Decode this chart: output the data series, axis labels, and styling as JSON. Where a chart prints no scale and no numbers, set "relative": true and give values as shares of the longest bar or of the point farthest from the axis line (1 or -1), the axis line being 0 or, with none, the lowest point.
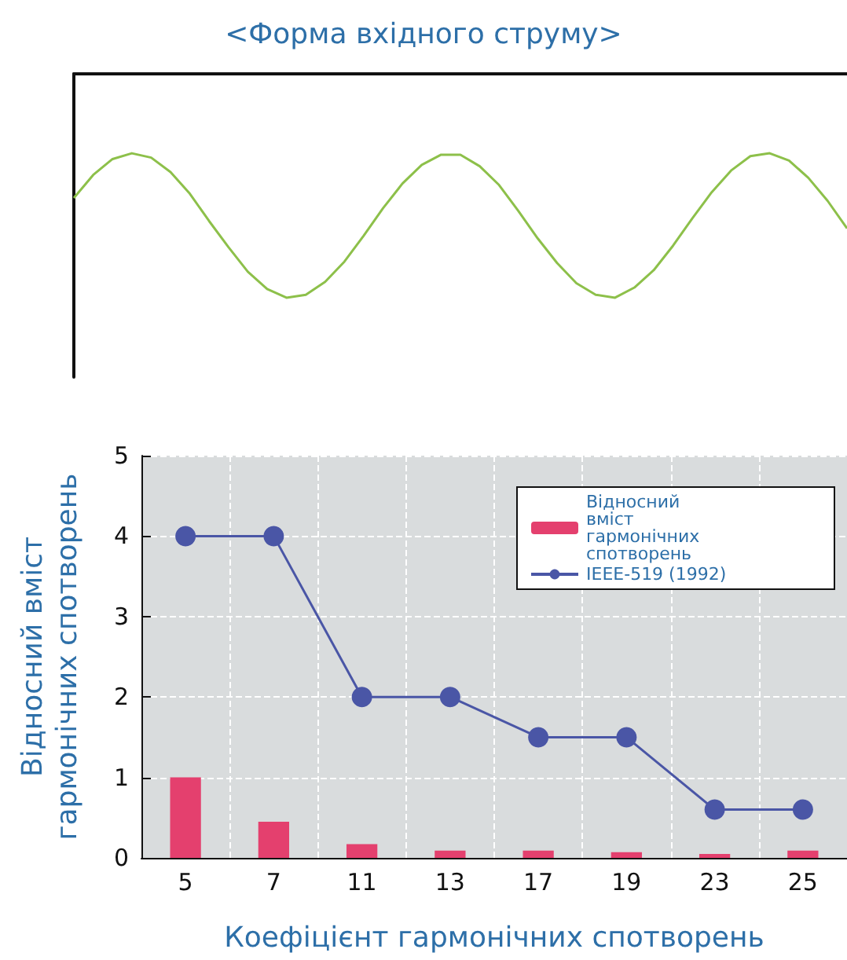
{
  "chart_data": [
    {
      "type": "line",
      "title": "<Форма вхідного струму>",
      "relative": true,
      "tick_labels": false,
      "grid": false,
      "legend": false,
      "line_style": "solid",
      "categories": [
        null,
        null,
        null,
        null,
        null,
        null,
        null,
        null,
        null,
        null,
        null,
        null,
        null,
        null,
        null,
        null,
        null,
        null,
        null,
        null,
        null,
        null,
        null,
        null,
        null,
        null,
        null,
        null,
        null,
        null,
        null,
        null,
        null,
        null,
        null,
        null,
        null,
        null,
        null,
        null,
        null
      ],
      "series": [
        {
          "color": "#8dc04a",
          "values": [
            0.69,
            0.85,
            0.96,
            1.0,
            0.97,
            0.87,
            0.72,
            0.53,
            0.35,
            0.18,
            0.06,
            0.0,
            0.02,
            0.11,
            0.25,
            0.43,
            0.62,
            0.79,
            0.92,
            0.99,
            0.99,
            0.91,
            0.78,
            0.6,
            0.41,
            0.24,
            0.1,
            0.02,
            0.0,
            0.07,
            0.19,
            0.36,
            0.55,
            0.73,
            0.88,
            0.98,
            1.0,
            0.95,
            0.83,
            0.67,
            0.48
          ]
        }
      ]
    },
    {
      "type": "bar",
      "xlabel": "Коефіцієнт гармонічних спотворень",
      "ylabel": "Відносний вміст гармонічних спотворень",
      "grid": true,
      "legend": "top right",
      "categories": [
        "5",
        "7",
        "11",
        "13",
        "17",
        "19",
        "23",
        "25"
      ],
      "ylim": [
        0,
        5
      ],
      "yticks": [
        0,
        1,
        2,
        3,
        4,
        5
      ],
      "series": [
        {
          "name": "Відносний вміст гармонічних спотворень",
          "type": "bar",
          "color": "#e4406e",
          "values": [
            1.0,
            0.45,
            0.17,
            0.09,
            0.09,
            0.07,
            0.05,
            0.09
          ]
        },
        {
          "name": "IEEE-519 (1992)",
          "type": "line",
          "color": "#4a56a6",
          "marker": "circle",
          "values": [
            4,
            4,
            2,
            2,
            1.5,
            1.5,
            0.6,
            0.6
          ]
        }
      ]
    }
  ]
}
